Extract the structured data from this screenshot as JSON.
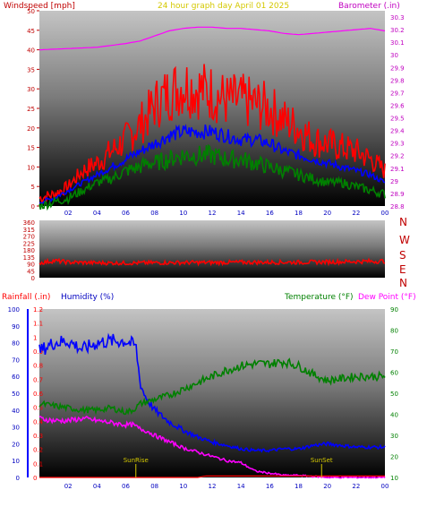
{
  "chart_data": [
    {
      "type": "line",
      "title": "24 hour graph day April 01 2025",
      "title_color": "#d4c800",
      "ylabel_left": "Windspeed [mph]",
      "ylabel_right": "Barometer (.in)",
      "ylim_left": [
        0,
        50
      ],
      "ylim_right": [
        28.8,
        30.35
      ],
      "xlim": [
        0,
        24
      ],
      "x_ticks": [
        "02",
        "04",
        "06",
        "08",
        "10",
        "12",
        "14",
        "16",
        "18",
        "20",
        "22",
        "00"
      ],
      "y_ticks_left": [
        "0",
        "5",
        "10",
        "15",
        "20",
        "25",
        "30",
        "35",
        "40",
        "45",
        "50"
      ],
      "y_ticks_right": [
        "28.8",
        "28.9",
        "29",
        "29.1",
        "29.2",
        "29.3",
        "29.4",
        "29.5",
        "29.6",
        "29.7",
        "29.8",
        "29.9",
        "30",
        "30.1",
        "30.2",
        "30.3"
      ],
      "series": [
        {
          "color": "#ff00ff",
          "axis": "right",
          "x": [
            0,
            2,
            4,
            6,
            7,
            8,
            9,
            10,
            11,
            12,
            13,
            14,
            15,
            16,
            17,
            18,
            19,
            20,
            21,
            22,
            23,
            24
          ],
          "values": [
            30.04,
            30.05,
            30.06,
            30.09,
            30.11,
            30.15,
            30.19,
            30.21,
            30.22,
            30.22,
            30.21,
            30.21,
            30.2,
            30.19,
            30.17,
            30.16,
            30.17,
            30.18,
            30.19,
            30.2,
            30.21,
            30.19
          ]
        },
        {
          "color": "#ff0000",
          "axis": "left",
          "x": [
            0,
            1,
            2,
            3,
            4,
            5,
            6,
            7,
            7.5,
            8,
            9,
            10,
            11,
            12,
            13,
            14,
            15,
            16,
            17,
            18,
            19,
            20,
            21,
            22,
            23,
            24
          ],
          "values": [
            2,
            3,
            5,
            9,
            11,
            14,
            17,
            21,
            23,
            26,
            29,
            31,
            30,
            29,
            27,
            27,
            26,
            25,
            22,
            20,
            17,
            16,
            15,
            14,
            12,
            9
          ]
        },
        {
          "color": "#0000ff",
          "axis": "left",
          "x": [
            0,
            1,
            2,
            3,
            4,
            5,
            6,
            7,
            7.5,
            8,
            9,
            10,
            11,
            12,
            13,
            14,
            15,
            16,
            17,
            18,
            19,
            20,
            21,
            22,
            23,
            24
          ],
          "values": [
            1,
            2,
            4,
            6,
            8,
            10,
            12,
            14,
            15,
            16,
            18,
            19,
            19,
            19,
            18,
            17,
            17,
            16,
            14,
            13,
            12,
            11,
            10,
            9,
            8,
            6
          ]
        },
        {
          "color": "#008000",
          "axis": "left",
          "x": [
            0,
            1,
            2,
            3,
            4,
            5,
            6,
            7,
            7.5,
            8,
            9,
            10,
            11,
            12,
            13,
            14,
            15,
            16,
            17,
            18,
            19,
            20,
            21,
            22,
            23,
            24
          ],
          "values": [
            0,
            1,
            2,
            4,
            6,
            7,
            9,
            10,
            11,
            11,
            12,
            13,
            13,
            13,
            12,
            12,
            11,
            10,
            9,
            8,
            7,
            6,
            6,
            5,
            4,
            3
          ]
        }
      ]
    },
    {
      "type": "line",
      "ylabel_right_letters": [
        "N",
        "W",
        "S",
        "E",
        "N"
      ],
      "ylim": [
        0,
        360
      ],
      "y_ticks_left": [
        "0",
        "45",
        "90",
        "135",
        "180",
        "225",
        "270",
        "315",
        "360"
      ],
      "series": [
        {
          "color": "#ff0000",
          "x": [
            0,
            1,
            2,
            4,
            6,
            8,
            10,
            12,
            14,
            16,
            18,
            20,
            22,
            24
          ],
          "values": [
            95,
            110,
            100,
            96,
            95,
            97,
            98,
            98,
            100,
            100,
            100,
            102,
            105,
            107
          ]
        }
      ]
    },
    {
      "type": "line",
      "legend": [
        "Rainfall (.in)",
        "Humidity (%)",
        "Temperature (°F)",
        "Dew Point (°F)"
      ],
      "legend_colors": [
        "#ff0000",
        "#0000c0",
        "#008000",
        "#ff00ff"
      ],
      "ylim_rainfall": [
        0,
        1.2
      ],
      "ylim_humidity": [
        0,
        100
      ],
      "ylim_temp": [
        10,
        90
      ],
      "y_ticks_rainfall": [
        "0",
        "0.1",
        "0.2",
        "0.3",
        "0.4",
        "0.5",
        "0.6",
        "0.7",
        "0.8",
        "0.9",
        "1",
        "1.1",
        "1.2"
      ],
      "y_ticks_humidity": [
        "0",
        "10",
        "20",
        "30",
        "40",
        "50",
        "60",
        "70",
        "80",
        "90",
        "100"
      ],
      "y_ticks_temp": [
        "10",
        "20",
        "30",
        "40",
        "50",
        "60",
        "70",
        "80",
        "90"
      ],
      "annotations": [
        {
          "text": "SunRise",
          "x": 6.7
        },
        {
          "text": "SunSet",
          "x": 19.6
        }
      ],
      "series": [
        {
          "name": "Humidity (%)",
          "color": "#0000ff",
          "axis": "humidity",
          "x": [
            0,
            1,
            2,
            3,
            4,
            5,
            6,
            6.7,
            7,
            7.3,
            7.6,
            8,
            9,
            10,
            11,
            12,
            13,
            14,
            15,
            16,
            17,
            18,
            19,
            20,
            21,
            22,
            23,
            24
          ],
          "values": [
            75,
            80,
            81,
            76,
            80,
            81,
            81,
            78,
            56,
            49,
            45,
            40,
            33,
            28,
            24,
            21,
            19,
            17,
            16,
            16,
            17,
            17,
            19,
            20,
            19,
            18,
            18,
            18
          ]
        },
        {
          "name": "Temperature (°F)",
          "color": "#008000",
          "axis": "temp",
          "x": [
            0,
            1,
            2,
            3,
            4,
            5,
            6,
            6.5,
            7,
            8,
            9,
            10,
            11,
            12,
            13,
            14,
            15,
            16,
            17,
            18,
            19,
            20,
            21,
            22,
            23,
            24
          ],
          "values": [
            45,
            44,
            43,
            42,
            42,
            43,
            41,
            42,
            45,
            47,
            49,
            52,
            55,
            58,
            61,
            63,
            64,
            64,
            65,
            63,
            59,
            56,
            57,
            58,
            58,
            58
          ]
        },
        {
          "name": "Dew Point (°F)",
          "color": "#ff00ff",
          "axis": "temp",
          "x": [
            0,
            1,
            2,
            3,
            4,
            5,
            6,
            6.5,
            7,
            7.5,
            8,
            9,
            10,
            11,
            12,
            13,
            14,
            15,
            16,
            17,
            18,
            19,
            20,
            21,
            22,
            23,
            24
          ],
          "values": [
            38,
            37,
            37,
            38,
            37,
            36,
            35,
            35,
            33,
            32,
            30,
            27,
            24,
            22,
            20,
            18,
            17,
            13,
            12,
            11,
            11,
            10.5,
            10,
            10,
            10,
            10,
            10
          ]
        },
        {
          "name": "Rainfall (.in)",
          "color": "#ff0000",
          "axis": "rainfall",
          "x": [
            0,
            11,
            11.5,
            24
          ],
          "values": [
            0,
            0,
            0.01,
            0.01
          ]
        }
      ]
    }
  ]
}
